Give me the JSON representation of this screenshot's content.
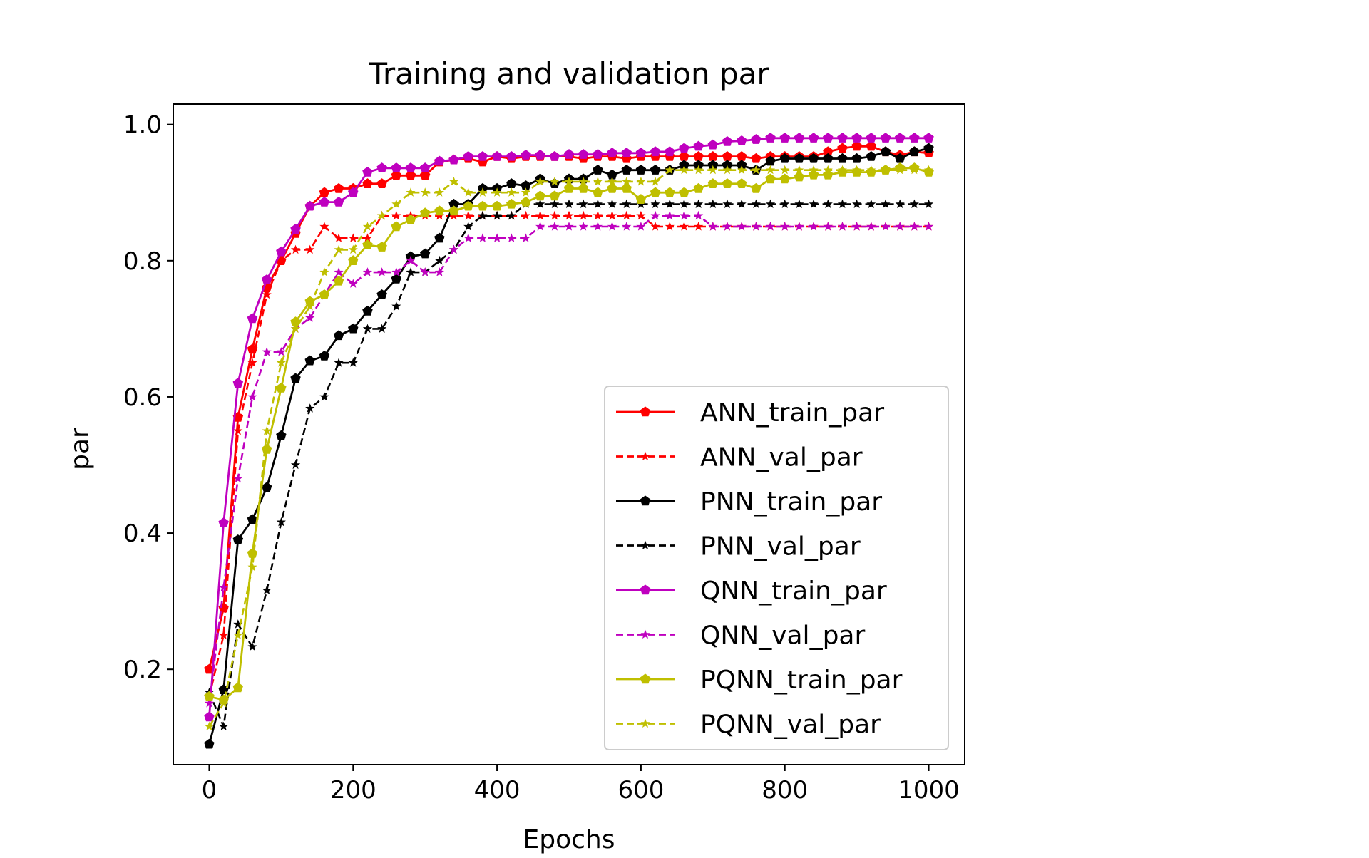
{
  "chart_data": {
    "type": "line",
    "title": "Training and validation par",
    "xlabel": "Epochs",
    "ylabel": "par",
    "xlim": [
      -50,
      1050
    ],
    "ylim": [
      0.06,
      1.03
    ],
    "xticks": [
      0,
      200,
      400,
      600,
      800,
      1000
    ],
    "yticks": [
      0.2,
      0.4,
      0.6,
      0.8,
      1.0
    ],
    "xtick_labels": [
      "0",
      "200",
      "400",
      "600",
      "800",
      "1000"
    ],
    "ytick_labels": [
      "0.2",
      "0.4",
      "0.6",
      "0.8",
      "1.0"
    ],
    "grid": false,
    "legend_position": "lower-right",
    "x": [
      0,
      20,
      40,
      60,
      80,
      100,
      120,
      140,
      160,
      180,
      200,
      220,
      240,
      260,
      280,
      300,
      320,
      340,
      360,
      380,
      400,
      420,
      440,
      460,
      480,
      500,
      520,
      540,
      560,
      580,
      600,
      620,
      640,
      660,
      680,
      700,
      720,
      740,
      760,
      780,
      800,
      820,
      840,
      860,
      880,
      900,
      920,
      940,
      960,
      980,
      1000
    ],
    "series": [
      {
        "name": "ANN_train_par",
        "color": "#ff0000",
        "dash": "solid",
        "marker": "pentagon",
        "values": [
          0.2,
          0.29,
          0.57,
          0.67,
          0.76,
          0.8,
          0.84,
          0.88,
          0.9,
          0.906,
          0.906,
          0.913,
          0.913,
          0.925,
          0.925,
          0.925,
          0.945,
          0.948,
          0.95,
          0.945,
          0.953,
          0.95,
          0.953,
          0.953,
          0.953,
          0.953,
          0.95,
          0.953,
          0.953,
          0.95,
          0.953,
          0.953,
          0.953,
          0.953,
          0.953,
          0.953,
          0.953,
          0.953,
          0.95,
          0.953,
          0.953,
          0.953,
          0.953,
          0.96,
          0.965,
          0.968,
          0.968,
          0.96,
          0.955,
          0.96,
          0.958
        ]
      },
      {
        "name": "ANN_val_par",
        "color": "#ff0000",
        "dash": "dashed",
        "marker": "star",
        "values": [
          0.16,
          0.25,
          0.55,
          0.65,
          0.75,
          0.8,
          0.816,
          0.816,
          0.85,
          0.833,
          0.833,
          0.833,
          0.866,
          0.866,
          0.866,
          0.866,
          0.866,
          0.866,
          0.866,
          0.866,
          0.866,
          0.866,
          0.866,
          0.866,
          0.866,
          0.866,
          0.866,
          0.866,
          0.866,
          0.866,
          0.866,
          0.85,
          0.85,
          0.85,
          0.85,
          0.85,
          0.85,
          0.85,
          0.85,
          0.85,
          0.85,
          0.85,
          0.85,
          0.85,
          0.85,
          0.85,
          0.85,
          0.85,
          0.85,
          0.85,
          0.85
        ]
      },
      {
        "name": "PNN_train_par",
        "color": "#000000",
        "dash": "solid",
        "marker": "pentagon",
        "values": [
          0.09,
          0.17,
          0.39,
          0.42,
          0.467,
          0.543,
          0.627,
          0.653,
          0.66,
          0.69,
          0.7,
          0.726,
          0.75,
          0.773,
          0.806,
          0.81,
          0.833,
          0.883,
          0.883,
          0.906,
          0.906,
          0.913,
          0.91,
          0.92,
          0.913,
          0.92,
          0.92,
          0.933,
          0.926,
          0.933,
          0.933,
          0.933,
          0.933,
          0.94,
          0.94,
          0.94,
          0.94,
          0.94,
          0.933,
          0.946,
          0.95,
          0.95,
          0.95,
          0.95,
          0.95,
          0.95,
          0.953,
          0.96,
          0.95,
          0.96,
          0.965
        ]
      },
      {
        "name": "PNN_val_par",
        "color": "#000000",
        "dash": "dashed",
        "marker": "star",
        "values": [
          0.166,
          0.116,
          0.266,
          0.233,
          0.316,
          0.416,
          0.5,
          0.583,
          0.6,
          0.65,
          0.65,
          0.7,
          0.7,
          0.733,
          0.783,
          0.783,
          0.8,
          0.816,
          0.85,
          0.866,
          0.866,
          0.866,
          0.883,
          0.883,
          0.883,
          0.883,
          0.883,
          0.883,
          0.883,
          0.883,
          0.883,
          0.883,
          0.883,
          0.883,
          0.883,
          0.883,
          0.883,
          0.883,
          0.883,
          0.883,
          0.883,
          0.883,
          0.883,
          0.883,
          0.883,
          0.883,
          0.883,
          0.883,
          0.883,
          0.883,
          0.883
        ]
      },
      {
        "name": "QNN_train_par",
        "color": "#bf00bf",
        "dash": "solid",
        "marker": "pentagon",
        "values": [
          0.13,
          0.415,
          0.62,
          0.715,
          0.772,
          0.813,
          0.846,
          0.88,
          0.886,
          0.886,
          0.9,
          0.93,
          0.936,
          0.936,
          0.936,
          0.936,
          0.946,
          0.948,
          0.953,
          0.953,
          0.953,
          0.953,
          0.955,
          0.955,
          0.953,
          0.956,
          0.956,
          0.956,
          0.958,
          0.958,
          0.958,
          0.96,
          0.96,
          0.965,
          0.968,
          0.97,
          0.975,
          0.976,
          0.978,
          0.98,
          0.98,
          0.98,
          0.98,
          0.98,
          0.98,
          0.98,
          0.98,
          0.98,
          0.98,
          0.98,
          0.98
        ]
      },
      {
        "name": "QNN_val_par",
        "color": "#bf00bf",
        "dash": "dashed",
        "marker": "star",
        "values": [
          0.15,
          0.32,
          0.48,
          0.6,
          0.666,
          0.666,
          0.7,
          0.716,
          0.75,
          0.783,
          0.766,
          0.783,
          0.783,
          0.783,
          0.8,
          0.783,
          0.783,
          0.816,
          0.833,
          0.833,
          0.833,
          0.833,
          0.833,
          0.85,
          0.85,
          0.85,
          0.85,
          0.85,
          0.85,
          0.85,
          0.85,
          0.866,
          0.866,
          0.866,
          0.866,
          0.85,
          0.85,
          0.85,
          0.85,
          0.85,
          0.85,
          0.85,
          0.85,
          0.85,
          0.85,
          0.85,
          0.85,
          0.85,
          0.85,
          0.85,
          0.85
        ]
      },
      {
        "name": "PQNN_train_par",
        "color": "#bfbf00",
        "dash": "solid",
        "marker": "pentagon",
        "values": [
          0.16,
          0.155,
          0.173,
          0.37,
          0.523,
          0.613,
          0.71,
          0.74,
          0.75,
          0.77,
          0.8,
          0.823,
          0.82,
          0.85,
          0.86,
          0.87,
          0.873,
          0.873,
          0.88,
          0.88,
          0.88,
          0.883,
          0.886,
          0.895,
          0.895,
          0.906,
          0.906,
          0.9,
          0.906,
          0.906,
          0.89,
          0.9,
          0.9,
          0.9,
          0.906,
          0.913,
          0.913,
          0.913,
          0.906,
          0.92,
          0.92,
          0.923,
          0.926,
          0.926,
          0.93,
          0.93,
          0.93,
          0.933,
          0.936,
          0.936,
          0.93
        ]
      },
      {
        "name": "PQNN_val_par",
        "color": "#bfbf00",
        "dash": "dashed",
        "marker": "star",
        "values": [
          0.116,
          0.15,
          0.25,
          0.35,
          0.55,
          0.65,
          0.7,
          0.733,
          0.783,
          0.816,
          0.816,
          0.85,
          0.866,
          0.883,
          0.9,
          0.9,
          0.9,
          0.916,
          0.9,
          0.9,
          0.9,
          0.9,
          0.9,
          0.916,
          0.916,
          0.916,
          0.916,
          0.916,
          0.916,
          0.916,
          0.916,
          0.916,
          0.933,
          0.933,
          0.933,
          0.933,
          0.933,
          0.933,
          0.933,
          0.933,
          0.933,
          0.933,
          0.933,
          0.933,
          0.933,
          0.933,
          0.933,
          0.933,
          0.933,
          0.933,
          0.933
        ]
      }
    ]
  }
}
